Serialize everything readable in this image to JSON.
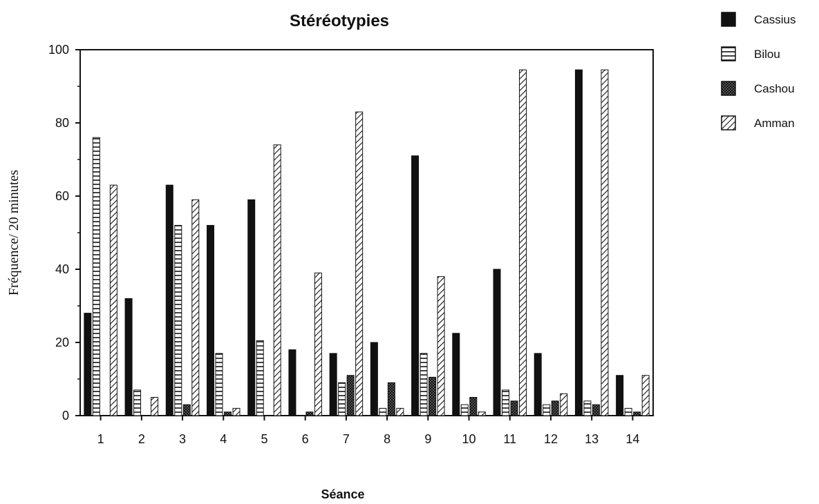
{
  "chart_data": {
    "type": "bar",
    "title": "Stéréotypies",
    "xlabel": "Séance",
    "ylabel": "Fréquence/ 20 minutes",
    "ylim": [
      0,
      100
    ],
    "yticks": [
      "0",
      "20",
      "40",
      "60",
      "80",
      "100"
    ],
    "categories": [
      "1",
      "2",
      "3",
      "4",
      "5",
      "6",
      "7",
      "8",
      "9",
      "10",
      "11",
      "12",
      "13",
      "14"
    ],
    "series": [
      {
        "name": "Cassius",
        "pattern": "solid",
        "values": [
          28,
          32,
          63,
          52,
          59,
          18,
          17,
          20,
          71,
          22.5,
          40,
          17,
          94.5,
          11
        ]
      },
      {
        "name": "Bilou",
        "pattern": "horizontal-stripes",
        "values": [
          76,
          7,
          52,
          17,
          20.5,
          0,
          9,
          2,
          17,
          3,
          7,
          3,
          4,
          2
        ]
      },
      {
        "name": "Cashou",
        "pattern": "crosshatch",
        "values": [
          0,
          0,
          3,
          1,
          0,
          1,
          11,
          9,
          10.5,
          5,
          4,
          4,
          3,
          1
        ]
      },
      {
        "name": "Amman",
        "pattern": "diagonal-stripes",
        "values": [
          63,
          5,
          59,
          2,
          74,
          39,
          83,
          2,
          38,
          1,
          94.5,
          6,
          94.5,
          11
        ]
      }
    ],
    "grid": false,
    "legend": "top-right",
    "colors": {
      "ink": "#111111",
      "background": "#ffffff"
    }
  }
}
